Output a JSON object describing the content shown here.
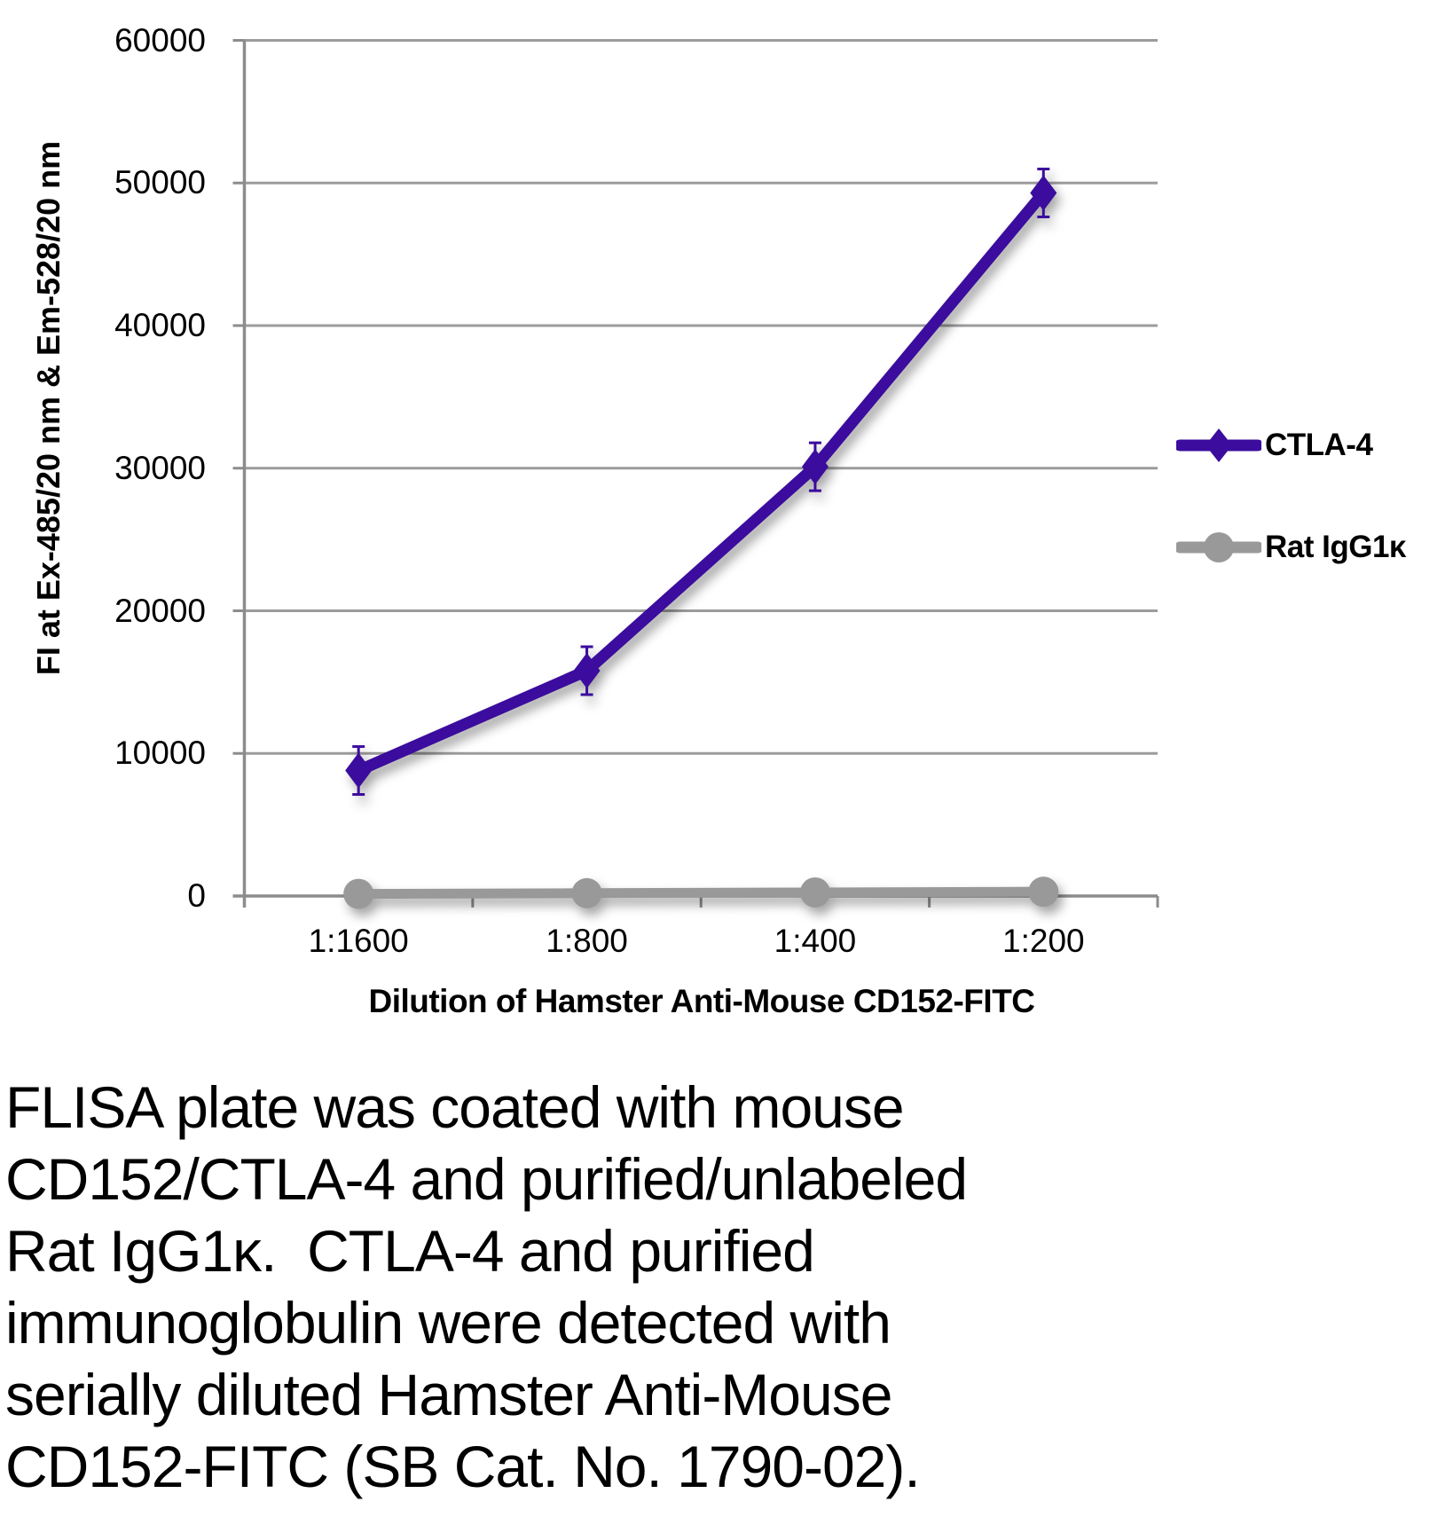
{
  "chart_data": {
    "type": "line",
    "categories": [
      "1:1600",
      "1:800",
      "1:400",
      "1:200"
    ],
    "series": [
      {
        "name": "CTLA-4",
        "values": [
          8800,
          15800,
          30100,
          49300
        ],
        "color": "#3B0C9D",
        "marker": "diamond",
        "error_bars": true
      },
      {
        "name": "Rat IgG1κ",
        "values": [
          150,
          200,
          250,
          300
        ],
        "color": "#999999",
        "marker": "circle",
        "error_bars": false
      }
    ],
    "title": "",
    "xlabel": "Dilution of Hamster Anti-Mouse CD152-FITC",
    "ylabel": "FI at Ex-485/20 nm & Em-528/20 nm",
    "ylim": [
      0,
      60000
    ],
    "ytick_interval": 10000,
    "ytick_labels": [
      "0",
      "10000",
      "20000",
      "30000",
      "40000",
      "50000",
      "60000"
    ],
    "xtick_labels": [
      "1:1600",
      "1:800",
      "1:400",
      "1:200"
    ],
    "grid": true,
    "legend_position": "right"
  },
  "colors": {
    "axis": "#8C8C8C",
    "grid": "#9C9C9C",
    "background": "#FFFFFF",
    "text": "#000000",
    "series_ctla4": "#3B0C9D",
    "series_rat_igg1k": "#999999"
  },
  "caption": {
    "lines": [
      "FLISA plate was coated with mouse",
      "CD152/CTLA-4 and purified/unlabeled",
      "Rat IgG1κ.  CTLA-4 and purified",
      "immunoglobulin were detected with",
      "serially diluted Hamster Anti-Mouse",
      "CD152-FITC (SB Cat. No. 1790-02)."
    ]
  }
}
